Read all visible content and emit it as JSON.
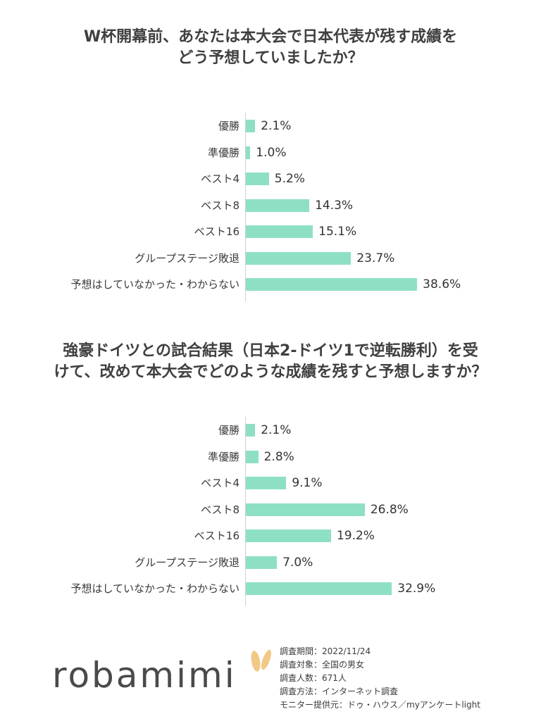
{
  "chart_data": [
    {
      "type": "bar",
      "orientation": "horizontal",
      "title_lines": [
        "W杯開幕前、あなたは本大会で日本代表が残す成績を",
        "どう予想していましたか？"
      ],
      "categories": [
        "優勝",
        "準優勝",
        "ベスト4",
        "ベスト8",
        "ベスト16",
        "グループステージ敗退",
        "予想はしていなかった・わからない"
      ],
      "values": [
        2.1,
        1.0,
        5.2,
        14.3,
        15.1,
        23.7,
        38.6
      ],
      "labels": [
        "2.1%",
        "1.0%",
        "5.2%",
        "14.3%",
        "15.1%",
        "23.7%",
        "38.6%"
      ],
      "unit": "%",
      "xlim": [
        0,
        40
      ],
      "color": "#8ee0c4"
    },
    {
      "type": "bar",
      "orientation": "horizontal",
      "title_lines": [
        "強豪ドイツとの試合結果（日本2-ドイツ1で逆転勝利）を受",
        "けて、改めて本大会でどのような成績を残すと予想しますか？"
      ],
      "categories": [
        "優勝",
        "準優勝",
        "ベスト4",
        "ベスト8",
        "ベスト16",
        "グループステージ敗退",
        "予想はしていなかった・わからない"
      ],
      "values": [
        2.1,
        2.8,
        9.1,
        26.8,
        19.2,
        7.0,
        32.9
      ],
      "labels": [
        "2.1%",
        "2.8%",
        "9.1%",
        "26.8%",
        "19.2%",
        "7.0%",
        "32.9%"
      ],
      "unit": "%",
      "xlim": [
        0,
        40
      ],
      "color": "#8ee0c4"
    }
  ],
  "footer": {
    "logo": "robamimi",
    "info_lines": [
      "調査期間：2022/11/24",
      "調査対象：全国の男女",
      "調査人数：671人",
      "調査方法：インターネット調査",
      "モニター提供元：ドゥ・ハウス／myアンケートlight"
    ],
    "ear_color": "#f2c886"
  }
}
